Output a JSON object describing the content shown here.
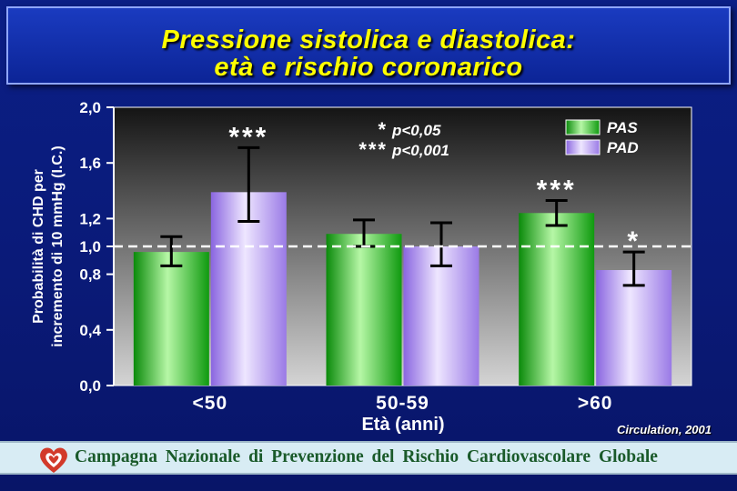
{
  "title": {
    "line1": "Pressione sistolica e diastolica:",
    "line2": "età e rischio coronarico"
  },
  "citation": "Circulation, 2001",
  "footer": {
    "text": "Campagna Nazionale di Prevenzione del Rischio Cardiovascolare Globale"
  },
  "colors": {
    "pas": "#22c022",
    "pad": "#a98cf0",
    "reference_line": "#ffffff",
    "title": "#ffff00"
  },
  "chart_data": {
    "type": "bar",
    "xlabel": "Età (anni)",
    "ylabel_lines": [
      "Probabilità di CHD per",
      "incremento di 10 mmHg (I.C.)"
    ],
    "categories": [
      "<50",
      "50-59",
      ">60"
    ],
    "ylim": [
      0,
      2.0
    ],
    "yticks": [
      0.0,
      0.4,
      0.8,
      1.0,
      1.2,
      1.6,
      2.0
    ],
    "ytick_labels": [
      "0,0",
      "0,4",
      "0,8",
      "1,0",
      "1,2",
      "1,6",
      "2,0"
    ],
    "reference_line": 1.0,
    "legend_position": "top-right",
    "series": [
      {
        "name": "PAS",
        "values": [
          0.96,
          1.09,
          1.24
        ],
        "ci_low": [
          0.86,
          1.0,
          1.15
        ],
        "ci_high": [
          1.07,
          1.19,
          1.33
        ],
        "significance": [
          "",
          "",
          "***"
        ]
      },
      {
        "name": "PAD",
        "values": [
          1.39,
          1.0,
          0.83
        ],
        "ci_low": [
          1.18,
          0.86,
          0.72
        ],
        "ci_high": [
          1.71,
          1.17,
          0.96
        ],
        "significance": [
          "***",
          "",
          "*"
        ]
      }
    ],
    "annotations": [
      {
        "marker": "*",
        "text": "p<0,05"
      },
      {
        "marker": "***",
        "text": "p<0,001"
      }
    ]
  }
}
